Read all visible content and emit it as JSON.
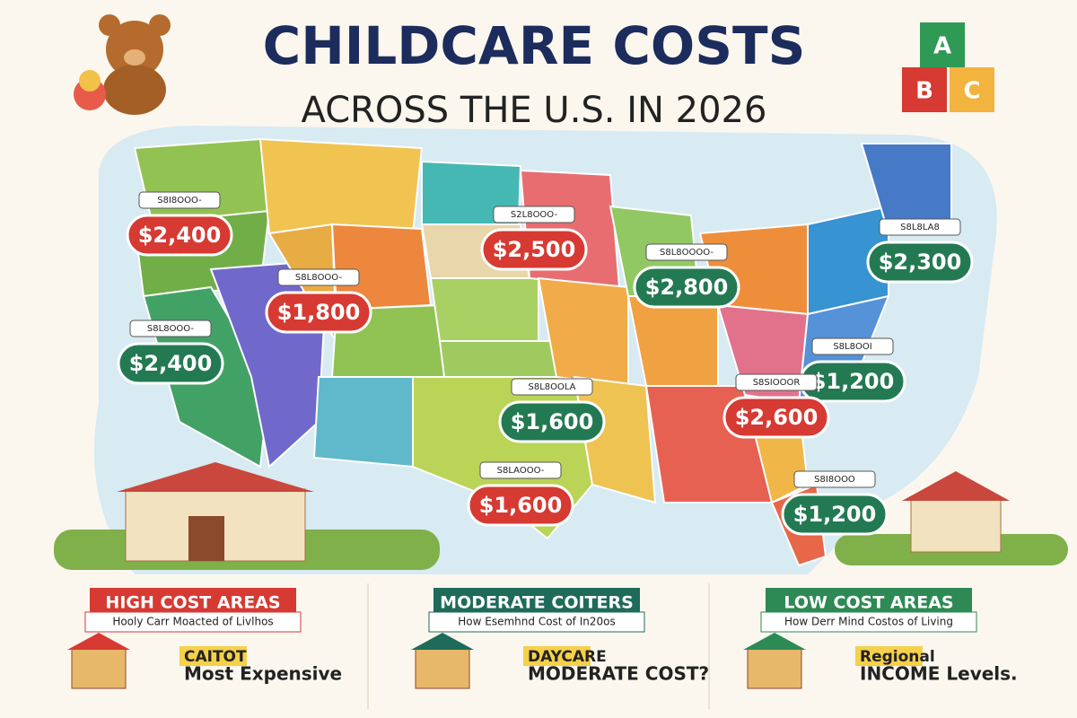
{
  "header": {
    "title": "CHILDCARE COSTS",
    "subtitle": "ACROSS THE U.S. IN 2026"
  },
  "price_tags": [
    {
      "label": "S8I8OOO-",
      "price": "$2,400",
      "color": "red"
    },
    {
      "label": "S8L8OOO-",
      "price": "$1,800",
      "color": "red"
    },
    {
      "label": "S8L8OOO-",
      "price": "$2,400",
      "color": "green"
    },
    {
      "label": "S2L8OOO-",
      "price": "$2,500",
      "color": "red"
    },
    {
      "label": "S8L8OOOO-",
      "price": "$2,800",
      "color": "green"
    },
    {
      "label": "S8L8LA8",
      "price": "$2,300",
      "color": "green"
    },
    {
      "label": "S8L8OOLA",
      "price": "$1,600",
      "color": "green"
    },
    {
      "label": "S8L8OOI",
      "price": "$1,200",
      "color": "green"
    },
    {
      "label": "S8SIOOOR",
      "price": "$2,600",
      "color": "red"
    },
    {
      "label": "S8LAOOO-",
      "price": "$1,600",
      "color": "red"
    },
    {
      "label": "S8I8OOO",
      "price": "$1,200",
      "color": "green"
    }
  ],
  "sections": [
    {
      "title": "HIGH COST AREAS",
      "subtitle": "Hooly Carr Moacted of Livlhos",
      "color": "#d63a32",
      "tag": "CAITOT",
      "note": "Most Expensive"
    },
    {
      "title": "MODERATE COITERS",
      "subtitle": "How Esemhnd Cost of In20os",
      "color": "#1f6b5a",
      "tag": "DAYCARE",
      "note": "MODERATE COST?"
    },
    {
      "title": "LOW COST AREAS",
      "subtitle": "How Derr Mind Costos of Living",
      "color": "#2e8a55",
      "tag": "Regional",
      "note": "INCOME Levels."
    }
  ]
}
